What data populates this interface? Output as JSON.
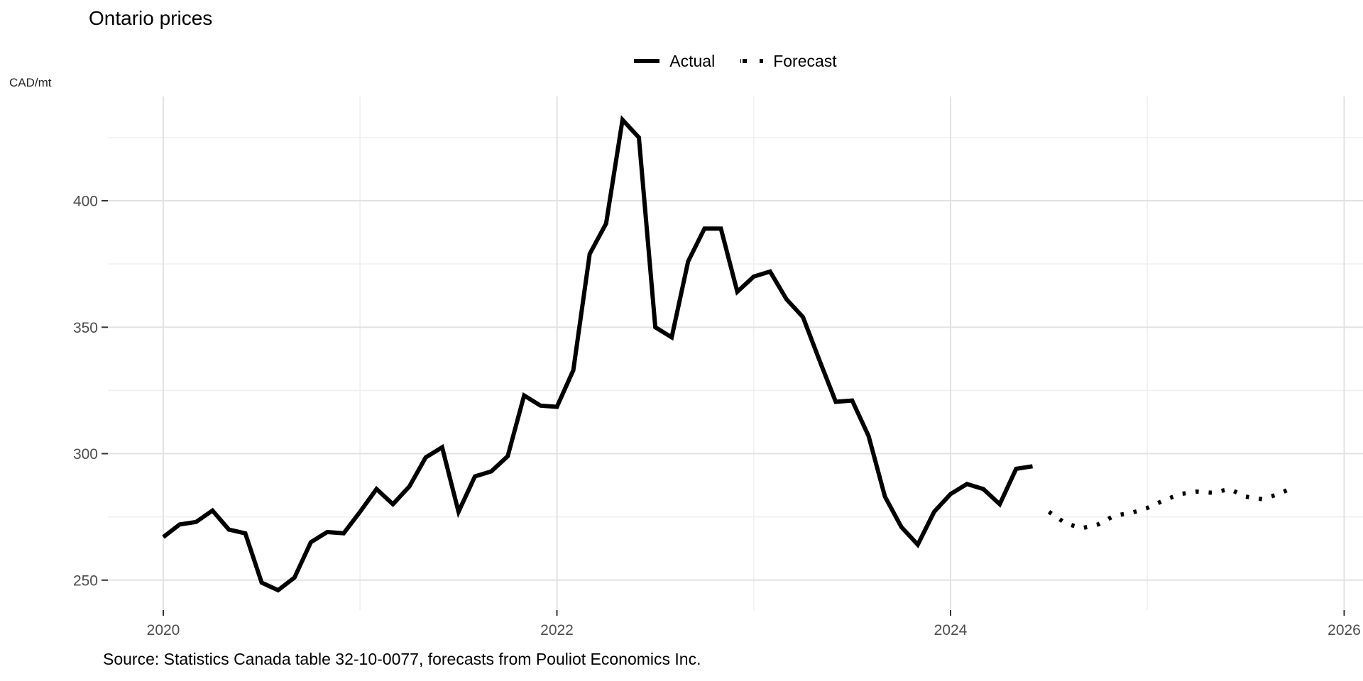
{
  "chart": {
    "title": "Ontario prices",
    "y_axis_unit": "CAD/mt",
    "source": "Source: Statistics Canada table 32-10-0077, forecasts from Pouliot Economics Inc.",
    "legend": {
      "actual_label": "Actual",
      "forecast_label": "Forecast"
    }
  },
  "chart_data": {
    "type": "line",
    "title": "Ontario prices",
    "ylabel": "CAD/mt",
    "xlabel": "",
    "grid": "on",
    "legend_position": "top-center",
    "line_color": "#000000",
    "tick_label_color": "#4d4d4d",
    "x_ticks": [
      2020,
      2022,
      2024,
      2026
    ],
    "x_minor_gridlines": [
      2021,
      2023,
      2025
    ],
    "y_ticks": [
      250,
      300,
      350,
      400
    ],
    "y_minor_gridlines": [
      275,
      325,
      375,
      425
    ],
    "ylim": [
      243,
      441
    ],
    "xlim_years": [
      2019.7,
      2026.1
    ],
    "series": [
      {
        "name": "Actual",
        "style": "solid",
        "start": "2020-01",
        "frequency": "monthly",
        "values": [
          267,
          272,
          273,
          277.5,
          270,
          268.5,
          249,
          246,
          251,
          265,
          269,
          268.5,
          277,
          286,
          280,
          287,
          298.5,
          302.5,
          277,
          291,
          293,
          299,
          323,
          319,
          318.5,
          333,
          379,
          391,
          432,
          425,
          350,
          346,
          376,
          389,
          389,
          364,
          370,
          372,
          361,
          354,
          337,
          320.5,
          321,
          307,
          283,
          271,
          264,
          277,
          284,
          288,
          286,
          280,
          294,
          295
        ]
      },
      {
        "name": "Forecast",
        "style": "dotted",
        "start": "2024-07",
        "frequency": "monthly",
        "values": [
          277,
          272.5,
          270.5,
          272,
          275.5,
          276.5,
          278.5,
          281.5,
          284,
          285,
          284.5,
          286,
          283,
          282,
          284,
          287
        ]
      }
    ]
  }
}
